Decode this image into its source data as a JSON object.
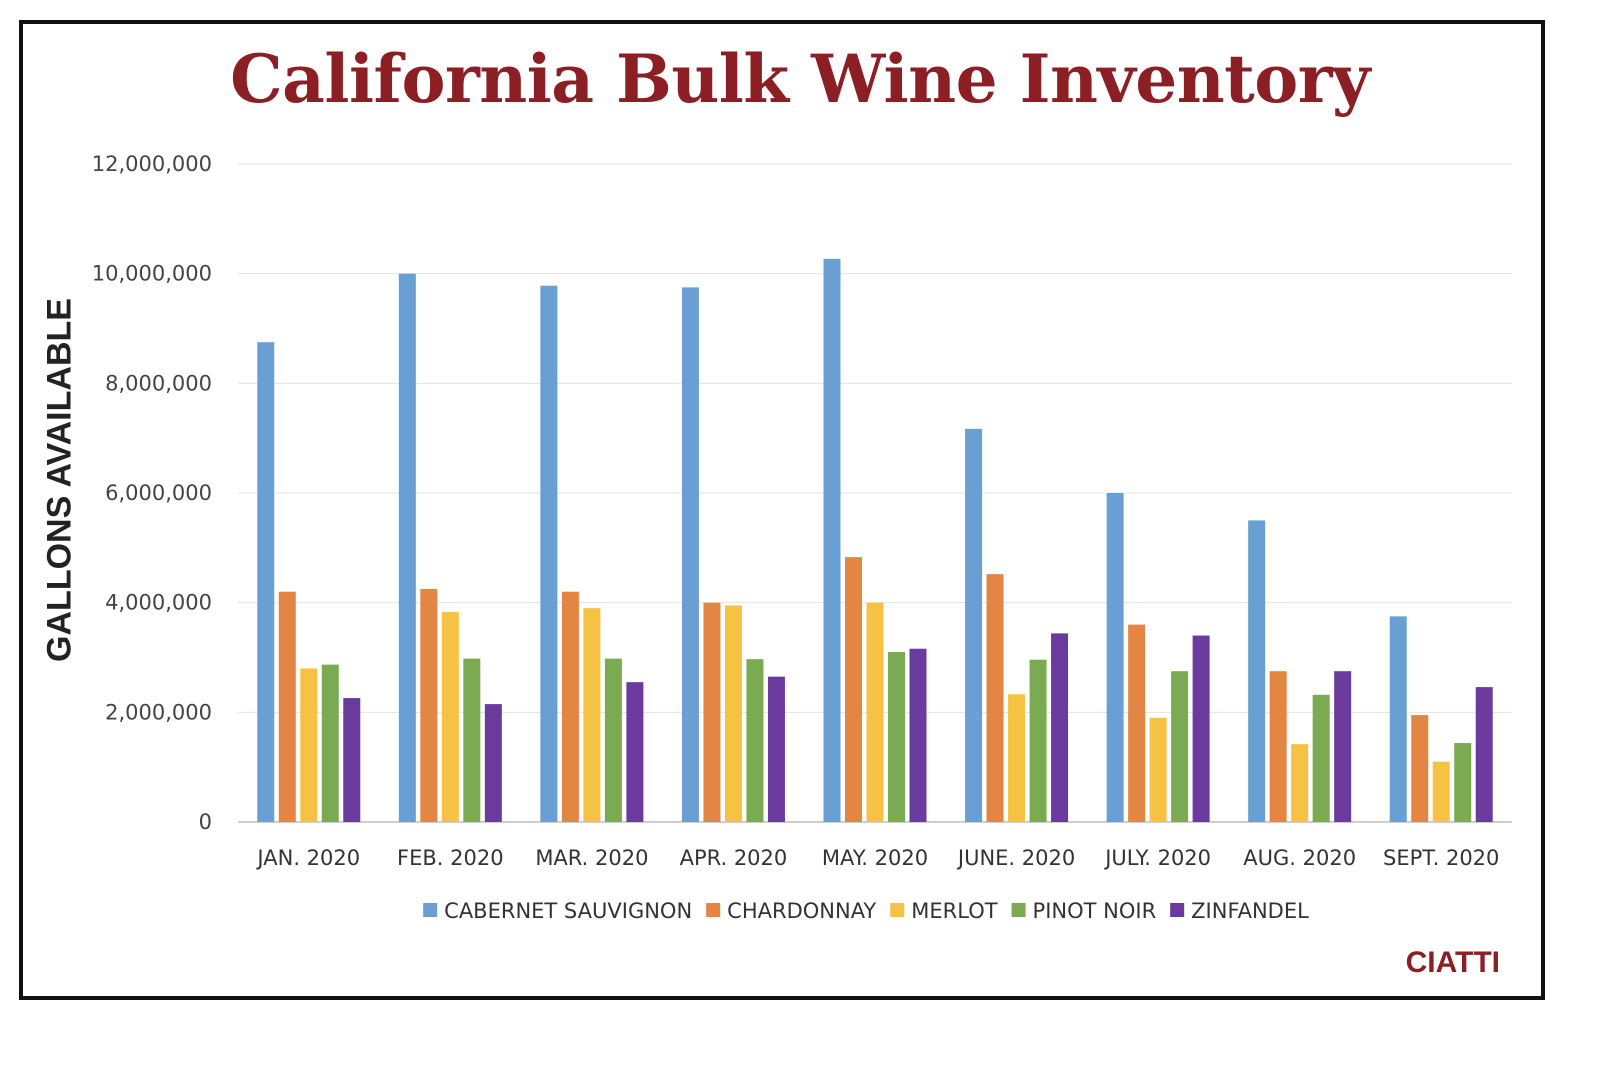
{
  "chart_data": {
    "type": "bar",
    "title": "California Bulk Wine Inventory",
    "xlabel": "",
    "ylabel": "GALLONS AVAILABLE",
    "ylim": [
      0,
      12000000
    ],
    "yticks": [
      "0",
      "2,000,000",
      "4,000,000",
      "6,000,000",
      "8,000,000",
      "10,000,000",
      "12,000,000"
    ],
    "ytick_values": [
      0,
      2000000,
      4000000,
      6000000,
      8000000,
      10000000,
      12000000
    ],
    "grid": true,
    "legend_position": "bottom",
    "categories": [
      "JAN. 2020",
      "FEB. 2020",
      "MAR. 2020",
      "APR. 2020",
      "MAY. 2020",
      "JUNE. 2020",
      "JULY. 2020",
      "AUG. 2020",
      "SEPT. 2020"
    ],
    "series": [
      {
        "name": "CABERNET SAUVIGNON",
        "color": "#6a9fd4",
        "values": [
          8750000,
          10000000,
          9780000,
          9750000,
          10270000,
          7170000,
          6000000,
          5500000,
          3750000
        ]
      },
      {
        "name": "CHARDONNAY",
        "color": "#e38543",
        "values": [
          4200000,
          4250000,
          4200000,
          4000000,
          4830000,
          4520000,
          3600000,
          2750000,
          1950000
        ]
      },
      {
        "name": "MERLOT",
        "color": "#f5c243",
        "values": [
          2800000,
          3830000,
          3900000,
          3950000,
          4000000,
          2330000,
          1900000,
          1420000,
          1100000
        ]
      },
      {
        "name": "PINOT NOIR",
        "color": "#7aab52",
        "values": [
          2870000,
          2980000,
          2980000,
          2970000,
          3100000,
          2960000,
          2750000,
          2320000,
          1440000
        ]
      },
      {
        "name": "ZINFANDEL",
        "color": "#6a3a9c",
        "values": [
          2260000,
          2150000,
          2550000,
          2650000,
          3160000,
          3440000,
          3400000,
          2750000,
          2460000
        ]
      }
    ]
  },
  "brand": "CIATTI"
}
